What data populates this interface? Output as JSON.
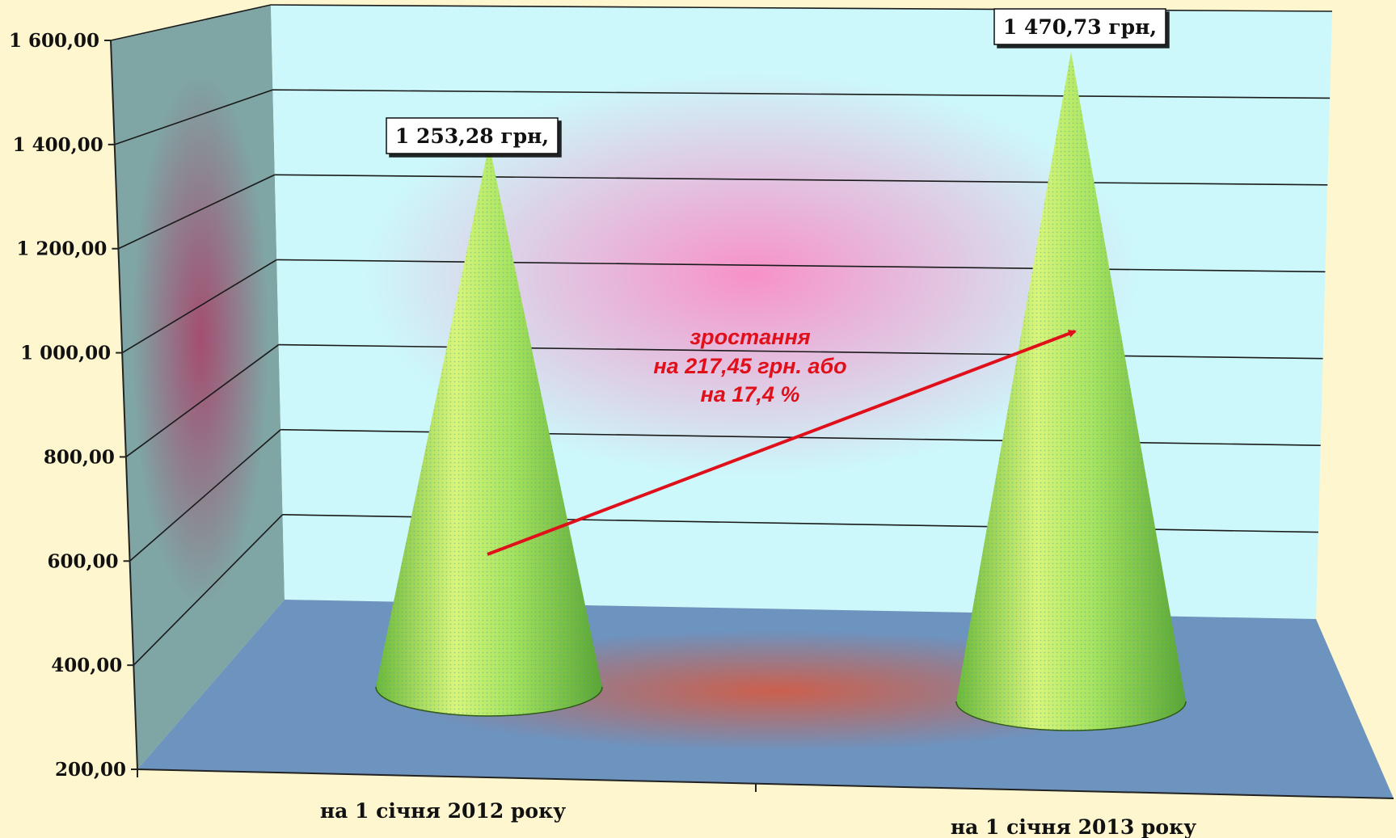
{
  "chart_data": {
    "type": "bar",
    "shape": "cone-3d",
    "categories": [
      "на 1 січня 2012 року",
      "на 1 січня 2013 року"
    ],
    "values": [
      1253.28,
      1470.73
    ],
    "data_labels": [
      "1 253,28 грн,",
      "1 470,73 грн,"
    ],
    "ylim": [
      200,
      1600
    ],
    "y_ticks": [
      {
        "value": 200,
        "label": "200,00"
      },
      {
        "value": 400,
        "label": "400,00"
      },
      {
        "value": 600,
        "label": "600,00"
      },
      {
        "value": 800,
        "label": "800,00"
      },
      {
        "value": 1000,
        "label": "1 000,00"
      },
      {
        "value": 1200,
        "label": "1 200,00"
      },
      {
        "value": 1400,
        "label": "1 400,00"
      },
      {
        "value": 1600,
        "label": "1 600,00"
      }
    ],
    "grid": true,
    "annotation": {
      "lines": [
        "зростання",
        "на 217,45 грн. або",
        "на 17,4 %"
      ],
      "color": "#e0101a"
    },
    "colors": {
      "cone": "#9fe05a",
      "back_wall": "#ccf8fb",
      "side_wall": "#7fa6a4",
      "floor": "#6d93bf",
      "page_background": "#fdf6cf",
      "arrow": "#e0101a"
    }
  }
}
